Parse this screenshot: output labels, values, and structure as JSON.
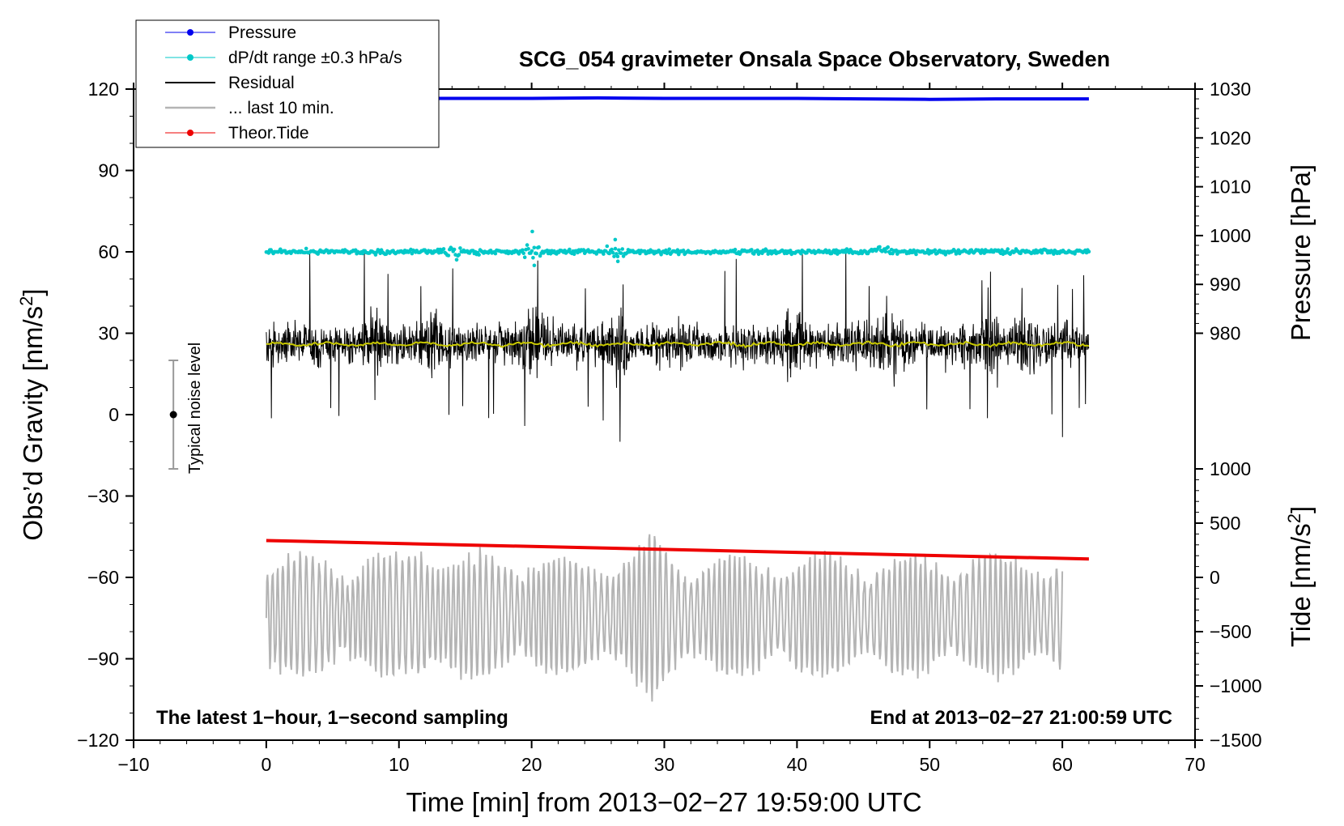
{
  "chart_data": {
    "type": "line",
    "title": "SCG_054 gravimeter Onsala Space Observatory, Sweden",
    "xlabel": "Time [min] from 2013−02−27 19:59:00 UTC",
    "ylabel_left": "Obs’d Gravity [nm/s²]",
    "ylabel_right_top": "Pressure [hPa]",
    "ylabel_right_bottom": "Tide [nm/s²]",
    "xlim": [
      -10,
      70
    ],
    "ylim_left": [
      -120,
      120
    ],
    "x_ticks": [
      -10,
      0,
      10,
      20,
      30,
      40,
      50,
      60,
      70
    ],
    "x_tick_labels": [
      "−10",
      "0",
      "10",
      "20",
      "30",
      "40",
      "50",
      "60",
      "70"
    ],
    "y_ticks_left": [
      -120,
      -90,
      -60,
      -30,
      0,
      30,
      60,
      90,
      120
    ],
    "y_tick_labels_left": [
      "−120",
      "−90",
      "−60",
      "−30",
      "0",
      "30",
      "60",
      "90",
      "120"
    ],
    "pressure_axis": {
      "ticks": [
        980,
        990,
        1000,
        1010,
        1020,
        1030
      ],
      "labels": [
        "980",
        "990",
        "1000",
        "1010",
        "1020",
        "1030"
      ],
      "gravity_at_980": 30,
      "gravity_at_1030": 120
    },
    "tide_axis": {
      "ticks": [
        -1500,
        -1000,
        -500,
        0,
        500,
        1000
      ],
      "labels": [
        "−1500",
        "−1000",
        "−500",
        "0",
        "500",
        "1000"
      ],
      "gravity_at_minus_1500": -120,
      "gravity_at_1000": -20
    },
    "legend": [
      {
        "label": "Pressure",
        "color": "#0000ee",
        "marker": true
      },
      {
        "label": "dP/dt range ±0.3 hPa/s",
        "color": "#00c8c8",
        "marker": true
      },
      {
        "label": "Residual",
        "color": "#000000",
        "marker": false
      },
      {
        "label": "... last 10 min.",
        "color": "#b4b4b4",
        "marker": false
      },
      {
        "label": "Theor.Tide",
        "color": "#ee0000",
        "marker": true
      }
    ],
    "series": [
      {
        "name": "Pressure",
        "axis": "pressure",
        "color": "#0000ee",
        "x": [
          0,
          10,
          20,
          25,
          30,
          40,
          45,
          50,
          55,
          62
        ],
        "y": [
          1028.1,
          1028.1,
          1028.1,
          1028.2,
          1028.1,
          1028.1,
          1028.0,
          1027.9,
          1028.0,
          1028.0
        ]
      },
      {
        "name": "dP/dt range ±0.3 hPa/s",
        "axis": "gravity",
        "color": "#00c8c8",
        "x": [
          0,
          62
        ],
        "y": [
          60,
          60
        ],
        "spread": 0.8
      },
      {
        "name": "Residual",
        "axis": "gravity",
        "color": "#000000",
        "x": [
          0,
          62
        ],
        "center": 26,
        "typical_range": [
          4,
          50
        ],
        "extremes": [
          -14,
          65
        ]
      },
      {
        "name": "Residual smoothed",
        "axis": "gravity",
        "color": "#c8c800",
        "x": [
          0,
          62
        ],
        "y": [
          26,
          26
        ]
      },
      {
        "name": "... last 10 min.",
        "axis": "gravity",
        "color": "#b4b4b4",
        "x": [
          0,
          60
        ],
        "center": -74,
        "amplitude": 22,
        "extremes": [
          -116,
          -36
        ]
      },
      {
        "name": "Theor.Tide",
        "axis": "tide",
        "color": "#ee0000",
        "x": [
          0,
          62
        ],
        "y": [
          340,
          170
        ]
      }
    ],
    "noise_indicator": {
      "label": "Typical noise level",
      "x": -7,
      "center": 0,
      "range": [
        -20,
        20
      ]
    },
    "footer_left": "The latest 1−hour, 1−second sampling",
    "footer_right": "End at 2013−02−27 21:00:59 UTC"
  }
}
